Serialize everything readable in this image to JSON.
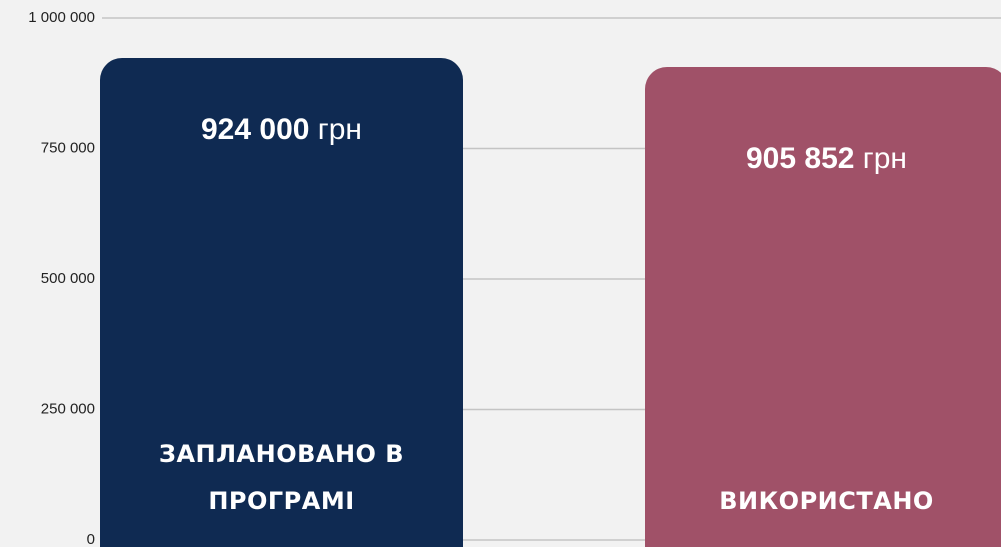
{
  "chart_data": {
    "type": "bar",
    "categories": [
      "ЗАПЛАНОВАНО В ПРОГРАМІ",
      "ВИКОРИСТАНО"
    ],
    "values": [
      924000,
      905852
    ],
    "value_labels": [
      "924 000",
      "905 852"
    ],
    "value_unit": "грн",
    "colors": [
      "#0f2a52",
      "#a05168"
    ],
    "ylim": [
      0,
      1000000
    ],
    "yticks": [
      0,
      {
        "value": 250000,
        "label": "250 000"
      },
      {
        "value": 500000,
        "label": "500 000"
      },
      {
        "value": 750000,
        "label": "750 000"
      },
      {
        "value": 1000000,
        "label": "1 000 000"
      }
    ],
    "grid": true
  }
}
